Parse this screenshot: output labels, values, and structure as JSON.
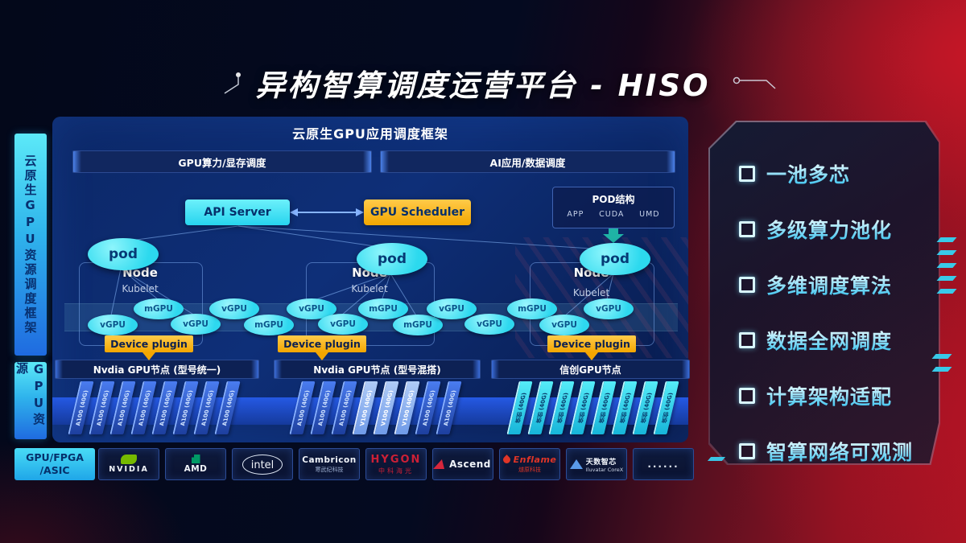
{
  "title": "异构智算调度运营平台 - HISO",
  "sidebar": {
    "frame_label": "云原生GPU资源调度框架",
    "resource_label": "GPU资源",
    "hardware_label_line1": "GPU/FPGA",
    "hardware_label_line2": "/ASIC"
  },
  "framework": {
    "title": "云原生GPU应用调度框架",
    "scheduler_bars": [
      "GPU算力/显存调度",
      "AI应用/数据调度"
    ],
    "api_server": "API Server",
    "gpu_scheduler": "GPU Scheduler",
    "pod_structure": {
      "title": "POD结构",
      "layers": [
        "APP",
        "CUDA",
        "UMD"
      ]
    },
    "pod_label": "pod",
    "node_label": "Node",
    "kubelet_label": "Kubelet",
    "device_plugin_label": "Device plugin",
    "gpu_units": [
      "vGPU",
      "mGPU",
      "vGPU",
      "vGPU",
      "mGPU",
      "vGPU",
      "vGPU",
      "mGPU",
      "mGPU",
      "vGPU",
      "vGPU",
      "mGPU",
      "vGPU",
      "vGPU"
    ],
    "node_bars": [
      "Nvdia GPU节点 (型号统一)",
      "Nvdia GPU节点 (型号混搭)",
      "信创GPU节点"
    ],
    "card_stacks": [
      {
        "cards": [
          {
            "label": "A100 (40G)",
            "type": "a100"
          },
          {
            "label": "A100 (40G)",
            "type": "a100"
          },
          {
            "label": "A100 (40G)",
            "type": "a100"
          },
          {
            "label": "A100 (40G)",
            "type": "a100"
          },
          {
            "label": "A100 (40G)",
            "type": "a100"
          },
          {
            "label": "A100 (40G)",
            "type": "a100"
          },
          {
            "label": "A100 (40G)",
            "type": "a100"
          },
          {
            "label": "A100 (40G)",
            "type": "a100"
          }
        ]
      },
      {
        "cards": [
          {
            "label": "A100 (40G)",
            "type": "a100"
          },
          {
            "label": "A100 (40G)",
            "type": "a100"
          },
          {
            "label": "A100 (40G)",
            "type": "a100"
          },
          {
            "label": "V100 (40G)",
            "type": "v100"
          },
          {
            "label": "V100 (40G)",
            "type": "v100"
          },
          {
            "label": "V100 (40G)",
            "type": "v100"
          },
          {
            "label": "A100 (40G)",
            "type": "a100"
          },
          {
            "label": "A100 (40G)",
            "type": "a100"
          }
        ]
      },
      {
        "cards": [
          {
            "label": "信创 (40G)",
            "type": "xc"
          },
          {
            "label": "信创 (40G)",
            "type": "xc"
          },
          {
            "label": "信创 (40G)",
            "type": "xc"
          },
          {
            "label": "信创 (40G)",
            "type": "xc"
          },
          {
            "label": "信创 (40G)",
            "type": "xc"
          },
          {
            "label": "信创 (40G)",
            "type": "xc"
          },
          {
            "label": "信创 (40G)",
            "type": "xc"
          },
          {
            "label": "信创 (40G)",
            "type": "xc"
          }
        ]
      }
    ]
  },
  "features": {
    "items": [
      "一池多芯",
      "多级算力池化",
      "多维调度算法",
      "数据全网调度",
      "计算架构适配",
      "智算网络可观测"
    ]
  },
  "vendors": [
    {
      "id": "nvidia",
      "name": "NVIDIA"
    },
    {
      "id": "amd",
      "name": "AMD"
    },
    {
      "id": "intel",
      "name": "intel"
    },
    {
      "id": "cambricon",
      "name": "Cambricon",
      "sub": "寒武纪科技"
    },
    {
      "id": "hygon",
      "name": "HYGON",
      "sub": "中科海光"
    },
    {
      "id": "ascend",
      "name": "Ascend"
    },
    {
      "id": "enflame",
      "name": "Enflame",
      "sub": "燧原科技"
    },
    {
      "id": "iluvatar",
      "name": "天数智芯",
      "sub": "Iluvatar CoreX"
    },
    {
      "id": "more",
      "name": "......"
    }
  ],
  "colors": {
    "accent_cyan": "#2cd9ee",
    "accent_amber": "#f3a600",
    "panel_blue": "#0c2868",
    "background_red": "#a61523",
    "nvidia_green": "#76b900",
    "logo_red": "#cc2036"
  }
}
